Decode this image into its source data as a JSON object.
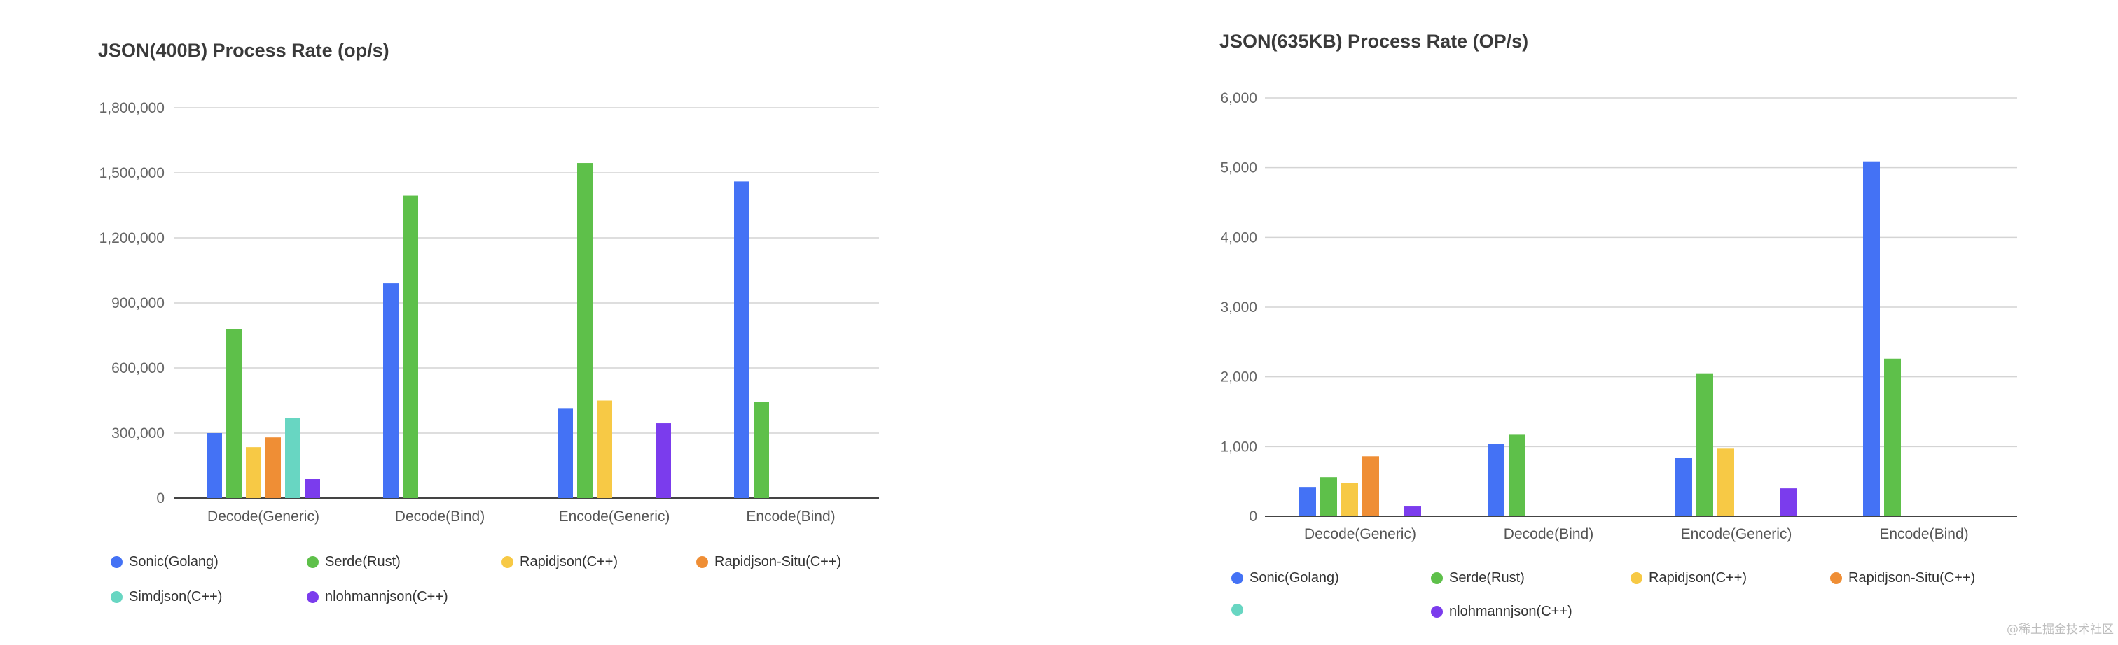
{
  "watermark": "@稀土掘金技术社区",
  "series_colors": [
    "#4472f5",
    "#5ec04a",
    "#f7c945",
    "#ef8e35",
    "#68d6c2",
    "#7b3ced"
  ],
  "chart_data": [
    {
      "type": "bar",
      "title": "JSON(400B) Process Rate (op/s)",
      "xlabel": "",
      "ylabel": "",
      "ylim": [
        0,
        1800000
      ],
      "yticks": [
        0,
        300000,
        600000,
        900000,
        1200000,
        1500000,
        1800000
      ],
      "ytick_labels": [
        "0",
        "300,000",
        "600,000",
        "900,000",
        "1,200,000",
        "1,500,000",
        "1,800,000"
      ],
      "grid": true,
      "legend_position": "bottom",
      "categories": [
        "Decode(Generic)",
        "Decode(Bind)",
        "Encode(Generic)",
        "Encode(Bind)"
      ],
      "series": [
        {
          "name": "Sonic(Golang)",
          "color": "#4472f5",
          "values": [
            300000,
            990000,
            415000,
            1460000
          ]
        },
        {
          "name": "Serde(Rust)",
          "color": "#5ec04a",
          "values": [
            780000,
            1395000,
            1545000,
            445000
          ]
        },
        {
          "name": "Rapidjson(C++)",
          "color": "#f7c945",
          "values": [
            235000,
            null,
            450000,
            null
          ]
        },
        {
          "name": "Rapidjson-Situ(C++)",
          "color": "#ef8e35",
          "values": [
            280000,
            null,
            null,
            null
          ]
        },
        {
          "name": "Simdjson(C++)",
          "color": "#68d6c2",
          "values": [
            370000,
            null,
            null,
            null
          ]
        },
        {
          "name": "nlohmannjson(C++)",
          "color": "#7b3ced",
          "values": [
            90000,
            null,
            345000,
            null
          ]
        }
      ]
    },
    {
      "type": "bar",
      "title": "JSON(635KB) Process Rate (OP/s)",
      "xlabel": "",
      "ylabel": "",
      "ylim": [
        0,
        6000
      ],
      "yticks": [
        0,
        1000,
        2000,
        3000,
        4000,
        5000,
        6000
      ],
      "ytick_labels": [
        "0",
        "1,000",
        "2,000",
        "3,000",
        "4,000",
        "5,000",
        "6,000"
      ],
      "grid": true,
      "legend_position": "bottom",
      "categories": [
        "Decode(Generic)",
        "Decode(Bind)",
        "Encode(Generic)",
        "Encode(Bind)"
      ],
      "series": [
        {
          "name": "Sonic(Golang)",
          "color": "#4472f5",
          "values": [
            420,
            1040,
            840,
            5090
          ]
        },
        {
          "name": "Serde(Rust)",
          "color": "#5ec04a",
          "values": [
            560,
            1170,
            2050,
            2260
          ]
        },
        {
          "name": "Rapidjson(C++)",
          "color": "#f7c945",
          "values": [
            480,
            null,
            970,
            null
          ]
        },
        {
          "name": "Rapidjson-Situ(C++)",
          "color": "#ef8e35",
          "values": [
            860,
            null,
            null,
            null
          ]
        },
        {
          "color": "#68d6c2",
          "values": [
            null,
            null,
            null,
            null
          ]
        },
        {
          "name": "nlohmannjson(C++)",
          "color": "#7b3ced",
          "values": [
            140,
            null,
            400,
            null
          ]
        }
      ]
    }
  ]
}
